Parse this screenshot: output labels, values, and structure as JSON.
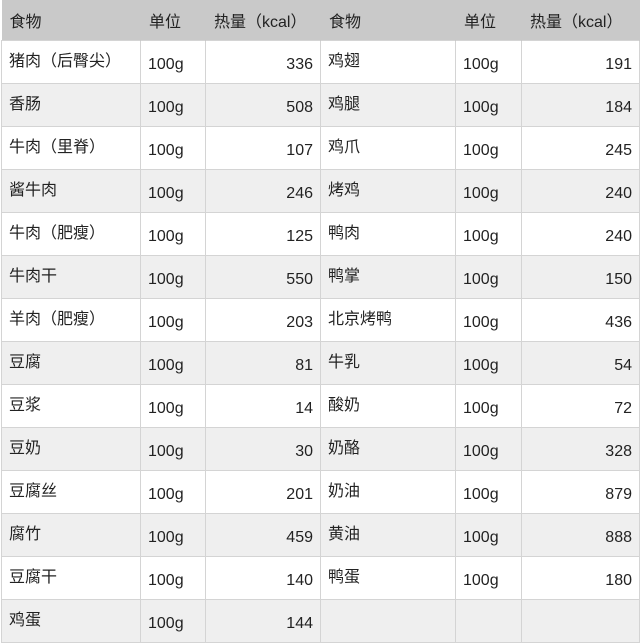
{
  "headers": [
    "食物",
    "单位",
    "热量（kcal）",
    "食物",
    "单位",
    "热量（kcal）"
  ],
  "rows": [
    [
      [
        "猪肉（后臀尖）",
        "100g",
        "336"
      ],
      [
        "鸡翅",
        "100g",
        "191"
      ]
    ],
    [
      [
        "香肠",
        "100g",
        "508"
      ],
      [
        "鸡腿",
        "100g",
        "184"
      ]
    ],
    [
      [
        "牛肉（里脊）",
        "100g",
        "107"
      ],
      [
        "鸡爪",
        "100g",
        "245"
      ]
    ],
    [
      [
        "酱牛肉",
        "100g",
        "246"
      ],
      [
        "烤鸡",
        "100g",
        "240"
      ]
    ],
    [
      [
        "牛肉（肥瘦）",
        "100g",
        "125"
      ],
      [
        "鸭肉",
        "100g",
        "240"
      ]
    ],
    [
      [
        "牛肉干",
        "100g",
        "550"
      ],
      [
        "鸭掌",
        "100g",
        "150"
      ]
    ],
    [
      [
        "羊肉（肥瘦）",
        "100g",
        "203"
      ],
      [
        "北京烤鸭",
        "100g",
        "436"
      ]
    ],
    [
      [
        "豆腐",
        "100g",
        "81"
      ],
      [
        "牛乳",
        "100g",
        "54"
      ]
    ],
    [
      [
        "豆浆",
        "100g",
        "14"
      ],
      [
        "酸奶",
        "100g",
        "72"
      ]
    ],
    [
      [
        "豆奶",
        "100g",
        "30"
      ],
      [
        "奶酪",
        "100g",
        "328"
      ]
    ],
    [
      [
        "豆腐丝",
        "100g",
        "201"
      ],
      [
        "奶油",
        "100g",
        "879"
      ]
    ],
    [
      [
        "腐竹",
        "100g",
        "459"
      ],
      [
        "黄油",
        "100g",
        "888"
      ]
    ],
    [
      [
        "豆腐干",
        "100g",
        "140"
      ],
      [
        "鸭蛋",
        "100g",
        "180"
      ]
    ],
    [
      [
        "鸡蛋",
        "100g",
        "144"
      ],
      [
        "",
        "",
        ""
      ]
    ]
  ],
  "colors": {
    "header_bg": "#c9c9c9",
    "alt_row_bg": "#efefef",
    "border": "#d4d4d4"
  }
}
